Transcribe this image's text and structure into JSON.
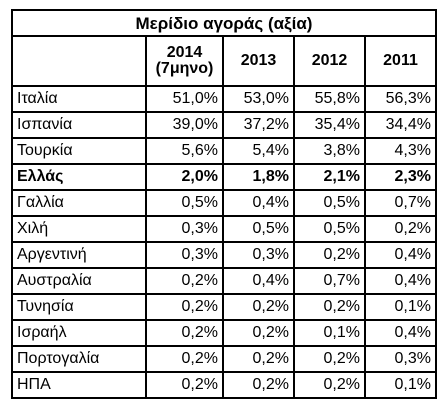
{
  "table": {
    "title": "Μερίδιο αγοράς (αξία)",
    "columns": [
      {
        "year": "2014",
        "sub": "(7μηνο)"
      },
      {
        "year": "2013",
        "sub": ""
      },
      {
        "year": "2012",
        "sub": ""
      },
      {
        "year": "2011",
        "sub": ""
      }
    ],
    "rows": [
      {
        "country": "Ιταλία",
        "values": [
          "51,0%",
          "53,0%",
          "55,8%",
          "56,3%"
        ],
        "bold": false
      },
      {
        "country": "Ισπανία",
        "values": [
          "39,0%",
          "37,2%",
          "35,4%",
          "34,4%"
        ],
        "bold": false
      },
      {
        "country": "Τουρκία",
        "values": [
          "5,6%",
          "5,4%",
          "3,8%",
          "4,3%"
        ],
        "bold": false
      },
      {
        "country": "Ελλάς",
        "values": [
          "2,0%",
          "1,8%",
          "2,1%",
          "2,3%"
        ],
        "bold": true
      },
      {
        "country": "Γαλλία",
        "values": [
          "0,5%",
          "0,4%",
          "0,5%",
          "0,7%"
        ],
        "bold": false
      },
      {
        "country": "Χιλή",
        "values": [
          "0,3%",
          "0,5%",
          "0,5%",
          "0,2%"
        ],
        "bold": false
      },
      {
        "country": "Αργεντινή",
        "values": [
          "0,3%",
          "0,3%",
          "0,2%",
          "0,4%"
        ],
        "bold": false
      },
      {
        "country": "Αυστραλία",
        "values": [
          "0,2%",
          "0,4%",
          "0,7%",
          "0,4%"
        ],
        "bold": false
      },
      {
        "country": "Τυνησία",
        "values": [
          "0,2%",
          "0,2%",
          "0,2%",
          "0,1%"
        ],
        "bold": false
      },
      {
        "country": "Ισραήλ",
        "values": [
          "0,2%",
          "0,2%",
          "0,1%",
          "0,4%"
        ],
        "bold": false
      },
      {
        "country": "Πορτογαλία",
        "values": [
          "0,2%",
          "0,2%",
          "0,2%",
          "0,3%"
        ],
        "bold": false
      },
      {
        "country": "ΗΠΑ",
        "values": [
          "0,2%",
          "0,2%",
          "0,2%",
          "0,1%"
        ],
        "bold": false
      }
    ]
  }
}
